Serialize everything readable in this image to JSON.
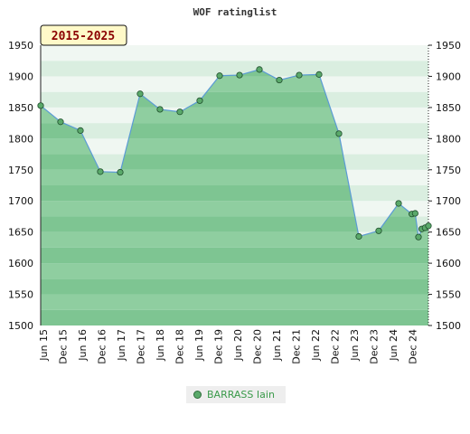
{
  "chart_data": {
    "type": "area",
    "title": "WOF ratinglist",
    "range_label": "2015-2025",
    "ylim": [
      1500,
      1950
    ],
    "yticks": [
      1500,
      1550,
      1600,
      1650,
      1700,
      1750,
      1800,
      1850,
      1900,
      1950
    ],
    "xticks": [
      "Jun 15",
      "Dec 15",
      "Jun 16",
      "Dec 16",
      "Jun 17",
      "Dec 17",
      "Jun 18",
      "Dec 18",
      "Jun 19",
      "Dec 19",
      "Jun 20",
      "Dec 20",
      "Jun 21",
      "Dec 21",
      "Jun 22",
      "Dec 22",
      "Jun 23",
      "Dec 23",
      "Jun 24",
      "Dec 24"
    ],
    "series": [
      {
        "name": "BARRASS Iain",
        "points": [
          {
            "x": "2015-06",
            "y": 1853
          },
          {
            "x": "2015-12",
            "y": 1827
          },
          {
            "x": "2016-06",
            "y": 1813
          },
          {
            "x": "2016-12",
            "y": 1747
          },
          {
            "x": "2017-06",
            "y": 1746
          },
          {
            "x": "2017-12",
            "y": 1872
          },
          {
            "x": "2018-06",
            "y": 1847
          },
          {
            "x": "2018-12",
            "y": 1843
          },
          {
            "x": "2019-06",
            "y": 1861
          },
          {
            "x": "2019-12",
            "y": 1901
          },
          {
            "x": "2020-06",
            "y": 1902
          },
          {
            "x": "2020-12",
            "y": 1911
          },
          {
            "x": "2021-06",
            "y": 1894
          },
          {
            "x": "2021-12",
            "y": 1902
          },
          {
            "x": "2022-06",
            "y": 1903
          },
          {
            "x": "2022-12",
            "y": 1808
          },
          {
            "x": "2023-06",
            "y": 1643
          },
          {
            "x": "2023-12",
            "y": 1652
          },
          {
            "x": "2024-06",
            "y": 1696
          },
          {
            "x": "2024-10",
            "y": 1679
          },
          {
            "x": "2024-11",
            "y": 1680
          },
          {
            "x": "2024-12",
            "y": 1642
          },
          {
            "x": "2025-01",
            "y": 1655
          },
          {
            "x": "2025-02",
            "y": 1657
          },
          {
            "x": "2025-03",
            "y": 1660
          }
        ]
      }
    ],
    "colors": {
      "band_light": "#daeee0",
      "band_light_alt": "#f0f7f2",
      "band_dark": "#7ec592",
      "band_dark_alt": "#8fcea0",
      "area_fill": "#6dbb84",
      "line": "#5b9bd5",
      "marker": "#5aa96a",
      "marker_stroke": "#1e4d2b"
    }
  }
}
